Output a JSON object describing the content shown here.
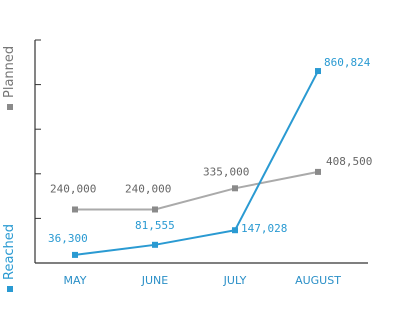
{
  "chart_data": {
    "type": "line",
    "categories": [
      "MAY",
      "JUNE",
      "JULY",
      "AUGUST"
    ],
    "series": [
      {
        "name": "Planned",
        "color": "#8a8a8a",
        "values": [
          240000,
          240000,
          335000,
          408500
        ],
        "labels": [
          "240,000",
          "240,000",
          "335,000",
          "408,500"
        ]
      },
      {
        "name": "Reached",
        "color": "#2a9ad2",
        "values": [
          36300,
          81555,
          147028,
          860824
        ],
        "labels": [
          "36,300",
          "81,555",
          "147,028",
          "860,824"
        ]
      }
    ],
    "ylim": [
      0,
      1000000
    ],
    "legend": "left, vertical",
    "grid": false
  }
}
